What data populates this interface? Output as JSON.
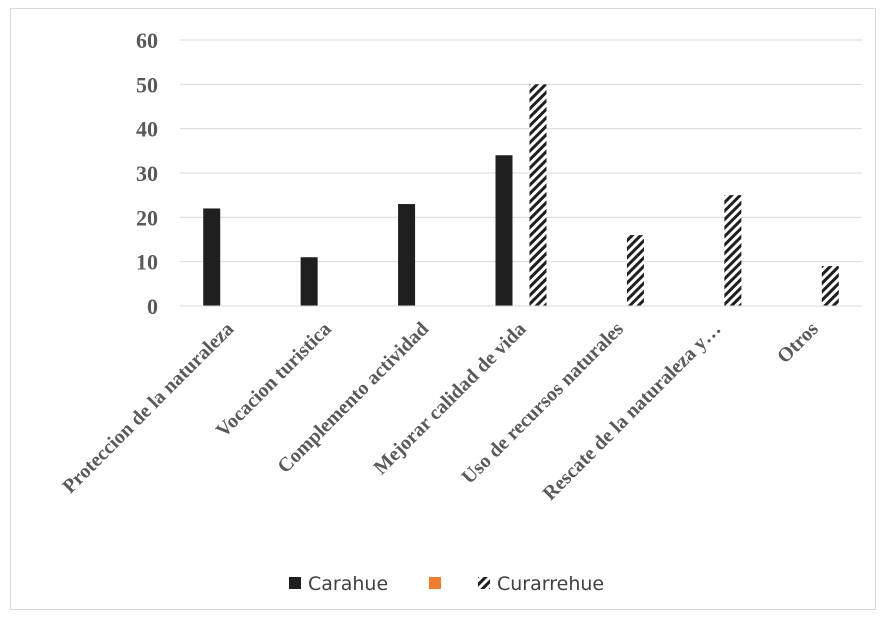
{
  "chart_data": {
    "type": "bar",
    "categories": [
      "Proteccion de  la naturaleza",
      "Vocacion turistica",
      "Complemento actividad",
      "Mejorar calidad de vida",
      "Uso de recursos naturales",
      "Rescate de la naturaleza y…",
      "Otros"
    ],
    "ylim": [
      0,
      60
    ],
    "yticks": [
      0,
      10,
      20,
      30,
      40,
      50,
      60
    ],
    "grid": true,
    "legend_position": "bottom",
    "series": [
      {
        "name": "Carahue",
        "values": [
          22,
          11,
          23,
          34,
          0,
          0,
          0
        ],
        "color": "#1f1f1f",
        "pattern": "solid"
      },
      {
        "name": "",
        "values": [
          0,
          0,
          0,
          0,
          0,
          0,
          0
        ],
        "color": "#ed7d31",
        "pattern": "solid"
      },
      {
        "name": "Curarrehue",
        "values": [
          0,
          0,
          0,
          50,
          16,
          25,
          9
        ],
        "color": "#1f1f1f",
        "pattern": "diagonal-hatch"
      }
    ]
  }
}
